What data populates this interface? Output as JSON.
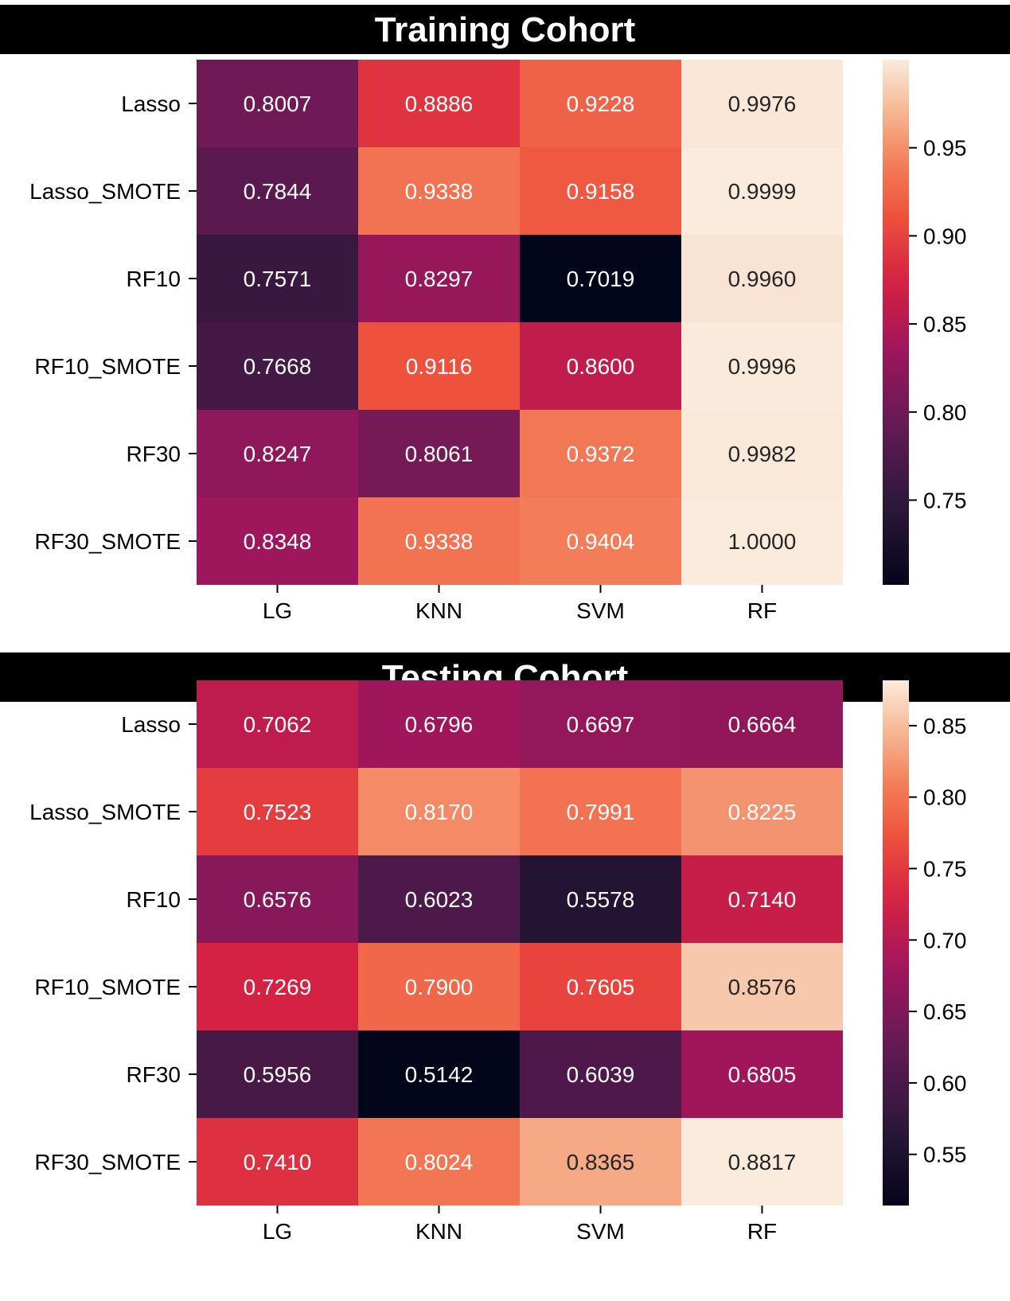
{
  "chart_data": [
    {
      "type": "heatmap",
      "title": "Training Cohort",
      "rows": [
        "Lasso",
        "Lasso_SMOTE",
        "RF10",
        "RF10_SMOTE",
        "RF30",
        "RF30_SMOTE"
      ],
      "columns": [
        "LG",
        "KNN",
        "SVM",
        "RF"
      ],
      "values": [
        [
          0.8007,
          0.8886,
          0.9228,
          0.9976
        ],
        [
          0.7844,
          0.9338,
          0.9158,
          0.9999
        ],
        [
          0.7571,
          0.8297,
          0.7019,
          0.996
        ],
        [
          0.7668,
          0.9116,
          0.86,
          0.9996
        ],
        [
          0.8247,
          0.8061,
          0.9372,
          0.9982
        ],
        [
          0.8348,
          0.9338,
          0.9404,
          1.0
        ]
      ],
      "value_labels": [
        [
          "0.8007",
          "0.8886",
          "0.9228",
          "0.9976"
        ],
        [
          "0.7844",
          "0.9338",
          "0.9158",
          "0.9999"
        ],
        [
          "0.7571",
          "0.8297",
          "0.7019",
          "0.9960"
        ],
        [
          "0.7668",
          "0.9116",
          "0.8600",
          "0.9996"
        ],
        [
          "0.8247",
          "0.8061",
          "0.9372",
          "0.9982"
        ],
        [
          "0.8348",
          "0.9338",
          "0.9404",
          "1.0000"
        ]
      ],
      "color_range": [
        0.7019,
        1.0
      ],
      "colorbar_ticks": [
        0.75,
        0.8,
        0.85,
        0.9,
        0.95
      ],
      "colorbar_tick_labels": [
        "0.75",
        "0.80",
        "0.85",
        "0.90",
        "0.95"
      ],
      "colormap": "rocket"
    },
    {
      "type": "heatmap",
      "title": "Testing Cohort",
      "rows": [
        "Lasso",
        "Lasso_SMOTE",
        "RF10",
        "RF10_SMOTE",
        "RF30",
        "RF30_SMOTE"
      ],
      "columns": [
        "LG",
        "KNN",
        "SVM",
        "RF"
      ],
      "values": [
        [
          0.7062,
          0.6796,
          0.6697,
          0.6664
        ],
        [
          0.7523,
          0.817,
          0.7991,
          0.8225
        ],
        [
          0.6576,
          0.6023,
          0.5578,
          0.714
        ],
        [
          0.7269,
          0.79,
          0.7605,
          0.8576
        ],
        [
          0.5956,
          0.5142,
          0.6039,
          0.6805
        ],
        [
          0.741,
          0.8024,
          0.8365,
          0.8817
        ]
      ],
      "value_labels": [
        [
          "0.7062",
          "0.6796",
          "0.6697",
          "0.6664"
        ],
        [
          "0.7523",
          "0.8170",
          "0.7991",
          "0.8225"
        ],
        [
          "0.6576",
          "0.6023",
          "0.5578",
          "0.7140"
        ],
        [
          "0.7269",
          "0.7900",
          "0.7605",
          "0.8576"
        ],
        [
          "0.5956",
          "0.5142",
          "0.6039",
          "0.6805"
        ],
        [
          "0.7410",
          "0.8024",
          "0.8365",
          "0.8817"
        ]
      ],
      "color_range": [
        0.5142,
        0.8817
      ],
      "colorbar_ticks": [
        0.55,
        0.6,
        0.65,
        0.7,
        0.75,
        0.8,
        0.85
      ],
      "colorbar_tick_labels": [
        "0.55",
        "0.60",
        "0.65",
        "0.70",
        "0.75",
        "0.80",
        "0.85"
      ],
      "colormap": "rocket"
    }
  ]
}
